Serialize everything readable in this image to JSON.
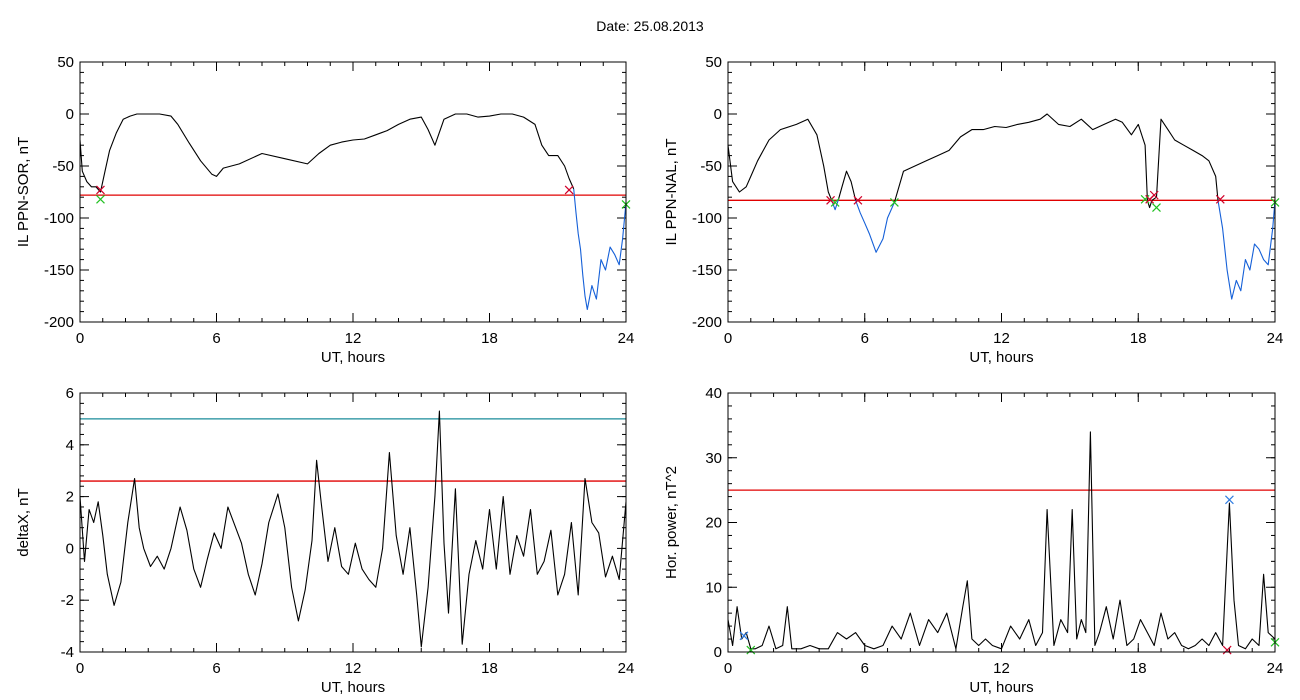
{
  "title": "Date:  25.08.2013",
  "colors": {
    "curve": "#000000",
    "subset": "#1560d8",
    "threshold_red": "#e00000",
    "threshold_teal": "#1a8c9a",
    "marker_red": "#d0002a",
    "marker_green": "#20c020",
    "marker_blue": "#2e7be0"
  },
  "chart_data": [
    {
      "type": "line",
      "xlabel": "UT, hours",
      "ylabel": "IL PPN-SOR, nT",
      "xlim": [
        0,
        24
      ],
      "ylim": [
        -200,
        50
      ],
      "xticks": [
        0,
        6,
        12,
        18,
        24
      ],
      "yticks": [
        -200,
        -150,
        -100,
        -50,
        0,
        50
      ],
      "grid": false,
      "thresholds": [
        {
          "value": -78,
          "color": "red"
        }
      ],
      "series": [
        {
          "x": [
            0,
            0.1,
            0.3,
            0.5,
            0.7,
            0.9,
            1.1,
            1.3,
            1.6,
            1.9,
            2.2,
            2.5,
            3.0,
            3.5,
            4.0,
            4.3,
            4.8,
            5.3,
            5.8,
            6.0,
            6.3,
            7.0,
            8.0,
            9.0,
            10.0,
            10.5,
            11.0,
            11.5,
            12.0,
            12.5,
            13.0,
            13.5,
            14.0,
            14.5,
            15.0,
            15.3,
            15.6,
            16.0,
            16.5,
            17.0,
            17.5,
            18.0,
            18.5,
            19.0,
            19.5,
            20.0,
            20.3,
            20.6,
            21.0,
            21.3,
            21.5,
            21.7
          ],
          "y": [
            -25,
            -55,
            -65,
            -70,
            -70,
            -75,
            -55,
            -35,
            -18,
            -5,
            -2,
            0,
            0,
            0,
            -2,
            -10,
            -28,
            -45,
            -58,
            -60,
            -52,
            -48,
            -38,
            -43,
            -48,
            -38,
            -30,
            -27,
            -25,
            -24,
            -20,
            -16,
            -10,
            -5,
            -3,
            -15,
            -30,
            -5,
            0,
            0,
            -3,
            -2,
            0,
            0,
            -3,
            -10,
            -30,
            -40,
            -40,
            -50,
            -62,
            -72
          ]
        },
        {
          "x": [
            21.7,
            21.8,
            21.9,
            22.0,
            22.1,
            22.2,
            22.3,
            22.5,
            22.7,
            22.9,
            23.1,
            23.3,
            23.5,
            23.7,
            23.85,
            24.0
          ],
          "y": [
            -72,
            -95,
            -115,
            -130,
            -155,
            -175,
            -188,
            -165,
            -178,
            -140,
            -150,
            -128,
            -135,
            -145,
            -120,
            -85
          ]
        }
      ],
      "markers": [
        {
          "x": 0.9,
          "y": -73,
          "color": "red"
        },
        {
          "x": 0.9,
          "y": -82,
          "color": "green"
        },
        {
          "x": 21.5,
          "y": -73,
          "color": "red"
        },
        {
          "x": 24.0,
          "y": -87,
          "color": "green"
        }
      ]
    },
    {
      "type": "line",
      "xlabel": "UT, hours",
      "ylabel": "IL PPN-NAL, nT",
      "xlim": [
        0,
        24
      ],
      "ylim": [
        -200,
        50
      ],
      "xticks": [
        0,
        6,
        12,
        18,
        24
      ],
      "yticks": [
        -200,
        -150,
        -100,
        -50,
        0,
        50
      ],
      "grid": false,
      "thresholds": [
        {
          "value": -83,
          "color": "red"
        }
      ],
      "series": [
        {
          "x": [
            0,
            0.2,
            0.5,
            0.8,
            1.0,
            1.3,
            1.8,
            2.3,
            3.0,
            3.5,
            3.9,
            4.2,
            4.4,
            4.55
          ],
          "y": [
            -30,
            -65,
            -75,
            -70,
            -60,
            -45,
            -25,
            -15,
            -10,
            -5,
            -20,
            -50,
            -75,
            -83
          ]
        },
        {
          "x": [
            4.55,
            4.7,
            4.85
          ],
          "y": [
            -83,
            -92,
            -82
          ]
        },
        {
          "x": [
            4.85,
            5.0,
            5.2,
            5.4,
            5.6
          ],
          "y": [
            -82,
            -70,
            -55,
            -65,
            -83
          ]
        },
        {
          "x": [
            5.6,
            5.8,
            6.0,
            6.2,
            6.5,
            6.8,
            7.0,
            7.3
          ],
          "y": [
            -83,
            -95,
            -105,
            -115,
            -133,
            -120,
            -100,
            -85
          ]
        },
        {
          "x": [
            7.3,
            7.7,
            8.2,
            8.7,
            9.2,
            9.7,
            10.2,
            10.7,
            11.2,
            11.7,
            12.2,
            12.7,
            13.2,
            13.7,
            14.0,
            14.5,
            15.0,
            15.5,
            16.0,
            16.5,
            17.0,
            17.3,
            17.7,
            18.0,
            18.3,
            18.4
          ],
          "y": [
            -85,
            -55,
            -50,
            -45,
            -40,
            -35,
            -22,
            -15,
            -15,
            -12,
            -13,
            -10,
            -8,
            -5,
            0,
            -10,
            -12,
            -5,
            -15,
            -10,
            -5,
            -8,
            -20,
            -10,
            -30,
            -83
          ]
        },
        {
          "x": [
            18.4,
            18.5,
            18.6
          ],
          "y": [
            -83,
            -90,
            -83
          ]
        },
        {
          "x": [
            18.6,
            18.8,
            19.0,
            19.3,
            19.6,
            20.0,
            20.4,
            20.8,
            21.1,
            21.4,
            21.5
          ],
          "y": [
            -83,
            -80,
            -5,
            -15,
            -25,
            -30,
            -35,
            -40,
            -45,
            -60,
            -83
          ]
        },
        {
          "x": [
            21.5,
            21.7,
            21.9,
            22.1,
            22.3,
            22.5,
            22.7,
            22.9,
            23.1,
            23.3,
            23.5,
            23.7,
            23.9,
            24.0
          ],
          "y": [
            -83,
            -110,
            -150,
            -178,
            -160,
            -170,
            -140,
            -150,
            -125,
            -130,
            -140,
            -145,
            -110,
            -83
          ]
        }
      ],
      "blue_segments": [
        1,
        3,
        7
      ],
      "markers": [
        {
          "x": 4.5,
          "y": -83,
          "color": "red"
        },
        {
          "x": 4.7,
          "y": -85,
          "color": "green"
        },
        {
          "x": 5.7,
          "y": -83,
          "color": "red"
        },
        {
          "x": 7.3,
          "y": -85,
          "color": "green"
        },
        {
          "x": 18.3,
          "y": -82,
          "color": "green"
        },
        {
          "x": 18.5,
          "y": -82,
          "color": "red"
        },
        {
          "x": 18.7,
          "y": -78,
          "color": "red"
        },
        {
          "x": 18.8,
          "y": -90,
          "color": "green"
        },
        {
          "x": 21.6,
          "y": -82,
          "color": "red"
        },
        {
          "x": 24.0,
          "y": -85,
          "color": "green"
        }
      ]
    },
    {
      "type": "line",
      "xlabel": "UT, hours",
      "ylabel": "deltaX, nT",
      "xlim": [
        0,
        24
      ],
      "ylim": [
        -4,
        6
      ],
      "xticks": [
        0,
        6,
        12,
        18,
        24
      ],
      "yticks": [
        -4,
        -2,
        0,
        2,
        4,
        6
      ],
      "grid": false,
      "thresholds": [
        {
          "value": 5.0,
          "color": "teal"
        },
        {
          "value": 2.6,
          "color": "red"
        }
      ],
      "series": [
        {
          "x": [
            0,
            0.2,
            0.4,
            0.6,
            0.8,
            1.0,
            1.2,
            1.5,
            1.8,
            2.1,
            2.4,
            2.6,
            2.8,
            3.1,
            3.4,
            3.7,
            4.0,
            4.4,
            4.7,
            5.0,
            5.3,
            5.6,
            5.9,
            6.2,
            6.5,
            6.8,
            7.1,
            7.4,
            7.7,
            8.0,
            8.3,
            8.7,
            9.0,
            9.3,
            9.6,
            9.9,
            10.2,
            10.4,
            10.6,
            10.9,
            11.2,
            11.5,
            11.8,
            12.1,
            12.4,
            12.7,
            13.0,
            13.3,
            13.6,
            13.9,
            14.2,
            14.5,
            14.8,
            15.0,
            15.3,
            15.6,
            15.8,
            16.0,
            16.2,
            16.5,
            16.8,
            17.1,
            17.4,
            17.7,
            18.0,
            18.3,
            18.6,
            18.9,
            19.2,
            19.5,
            19.8,
            20.1,
            20.4,
            20.7,
            21.0,
            21.3,
            21.6,
            21.9,
            22.2,
            22.5,
            22.8,
            23.1,
            23.4,
            23.7,
            24.0
          ],
          "y": [
            2.0,
            -0.5,
            1.5,
            1.0,
            1.8,
            0.5,
            -1.0,
            -2.2,
            -1.3,
            1.0,
            2.7,
            0.8,
            0.0,
            -0.7,
            -0.3,
            -0.8,
            0.0,
            1.6,
            0.7,
            -0.8,
            -1.5,
            -0.4,
            0.6,
            0.0,
            1.6,
            0.9,
            0.2,
            -1.0,
            -1.8,
            -0.6,
            1.0,
            2.1,
            0.8,
            -1.5,
            -2.8,
            -1.6,
            0.3,
            3.4,
            1.8,
            -0.5,
            0.8,
            -0.7,
            -1.0,
            0.2,
            -0.8,
            -1.2,
            -1.5,
            0.0,
            3.7,
            0.5,
            -1.0,
            0.8,
            -1.8,
            -3.8,
            -1.5,
            2.0,
            5.3,
            0.2,
            -2.5,
            2.3,
            -3.7,
            -1.0,
            0.3,
            -0.8,
            1.5,
            -0.8,
            2.0,
            -1.0,
            0.5,
            -0.3,
            1.5,
            -1.0,
            -0.5,
            0.7,
            -1.8,
            -1.0,
            1.0,
            -1.8,
            2.7,
            1.0,
            0.6,
            -1.1,
            -0.3,
            -1.2,
            1.8
          ]
        }
      ],
      "markers": []
    },
    {
      "type": "line",
      "xlabel": "UT, hours",
      "ylabel": "Hor. power, nT^2",
      "xlim": [
        0,
        24
      ],
      "ylim": [
        0,
        40
      ],
      "xticks": [
        0,
        6,
        12,
        18,
        24
      ],
      "yticks": [
        0,
        10,
        20,
        30,
        40
      ],
      "grid": false,
      "thresholds": [
        {
          "value": 25,
          "color": "red"
        }
      ],
      "series": [
        {
          "x": [
            0,
            0.2,
            0.4,
            0.6,
            0.8,
            1.0,
            1.2,
            1.5,
            1.8,
            2.1,
            2.4,
            2.6,
            2.8,
            3.2,
            3.6,
            4.0,
            4.4,
            4.8,
            5.2,
            5.6,
            6.0,
            6.4,
            6.8,
            7.2,
            7.6,
            8.0,
            8.4,
            8.8,
            9.2,
            9.6,
            10.0,
            10.3,
            10.5,
            10.7,
            11.0,
            11.3,
            11.6,
            12.0,
            12.4,
            12.8,
            13.2,
            13.5,
            13.8,
            14.0,
            14.3,
            14.6,
            14.9,
            15.1,
            15.3,
            15.5,
            15.7,
            15.9,
            16.1,
            16.3,
            16.6,
            16.9,
            17.2,
            17.5,
            17.8,
            18.1,
            18.4,
            18.7,
            19.0,
            19.3,
            19.6,
            19.9,
            20.2,
            20.5,
            20.8,
            21.1,
            21.4,
            21.7,
            22.0,
            22.2,
            22.4,
            22.7,
            23.0,
            23.3,
            23.5,
            23.7,
            24.0
          ],
          "y": [
            5,
            1,
            7,
            2,
            3,
            0.5,
            0.5,
            1,
            4,
            0.5,
            1,
            7,
            0.5,
            0.5,
            1,
            0.5,
            0.5,
            3,
            2,
            3,
            1,
            0.5,
            1,
            4,
            2,
            6,
            1,
            5,
            3,
            6,
            0.5,
            7,
            11,
            2,
            1,
            2,
            1,
            0.5,
            4,
            2,
            5,
            1,
            3,
            22,
            1,
            5,
            3,
            22,
            2,
            5,
            3,
            34,
            1,
            3,
            7,
            2,
            8,
            1,
            2,
            5,
            3,
            1,
            6,
            2,
            3,
            1,
            0.5,
            1,
            2,
            1,
            3,
            1,
            23,
            8,
            1,
            0.5,
            2,
            1,
            12,
            3,
            2
          ]
        }
      ],
      "markers": [
        {
          "x": 0.7,
          "y": 2.5,
          "color": "blue"
        },
        {
          "x": 1.0,
          "y": 0.3,
          "color": "green"
        },
        {
          "x": 22.0,
          "y": 23.5,
          "color": "blue"
        },
        {
          "x": 21.9,
          "y": 0.3,
          "color": "red"
        },
        {
          "x": 24.0,
          "y": 1.5,
          "color": "green"
        }
      ]
    }
  ]
}
